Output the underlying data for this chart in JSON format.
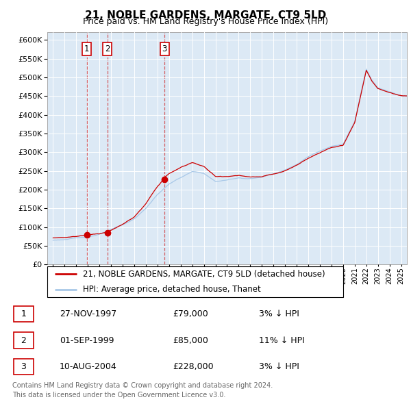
{
  "title": "21, NOBLE GARDENS, MARGATE, CT9 5LD",
  "subtitle": "Price paid vs. HM Land Registry's House Price Index (HPI)",
  "bg_color": "#dce9f5",
  "hpi_color": "#a8c8e8",
  "price_color": "#cc0000",
  "sale_marker_color": "#cc0000",
  "transactions": [
    {
      "label": "1",
      "date_str": "27-NOV-1997",
      "date_num": 1997.91,
      "price": 79000
    },
    {
      "label": "2",
      "date_str": "01-SEP-1999",
      "date_num": 1999.67,
      "price": 85000
    },
    {
      "label": "3",
      "date_str": "10-AUG-2004",
      "date_num": 2004.61,
      "price": 228000
    }
  ],
  "legend_line1": "21, NOBLE GARDENS, MARGATE, CT9 5LD (detached house)",
  "legend_line2": "HPI: Average price, detached house, Thanet",
  "table_rows": [
    [
      "1",
      "27-NOV-1997",
      "£79,000",
      "3% ↓ HPI"
    ],
    [
      "2",
      "01-SEP-1999",
      "£85,000",
      "11% ↓ HPI"
    ],
    [
      "3",
      "10-AUG-2004",
      "£228,000",
      "3% ↓ HPI"
    ]
  ],
  "footer": "Contains HM Land Registry data © Crown copyright and database right 2024.\nThis data is licensed under the Open Government Licence v3.0.",
  "ylim": [
    0,
    620000
  ],
  "yticks": [
    0,
    50000,
    100000,
    150000,
    200000,
    250000,
    300000,
    350000,
    400000,
    450000,
    500000,
    550000,
    600000
  ],
  "xlim": [
    1994.5,
    2025.5
  ],
  "xticks": [
    1995,
    1996,
    1997,
    1998,
    1999,
    2000,
    2001,
    2002,
    2003,
    2004,
    2005,
    2006,
    2007,
    2008,
    2009,
    2010,
    2011,
    2012,
    2013,
    2014,
    2015,
    2016,
    2017,
    2018,
    2019,
    2020,
    2021,
    2022,
    2023,
    2024,
    2025
  ]
}
